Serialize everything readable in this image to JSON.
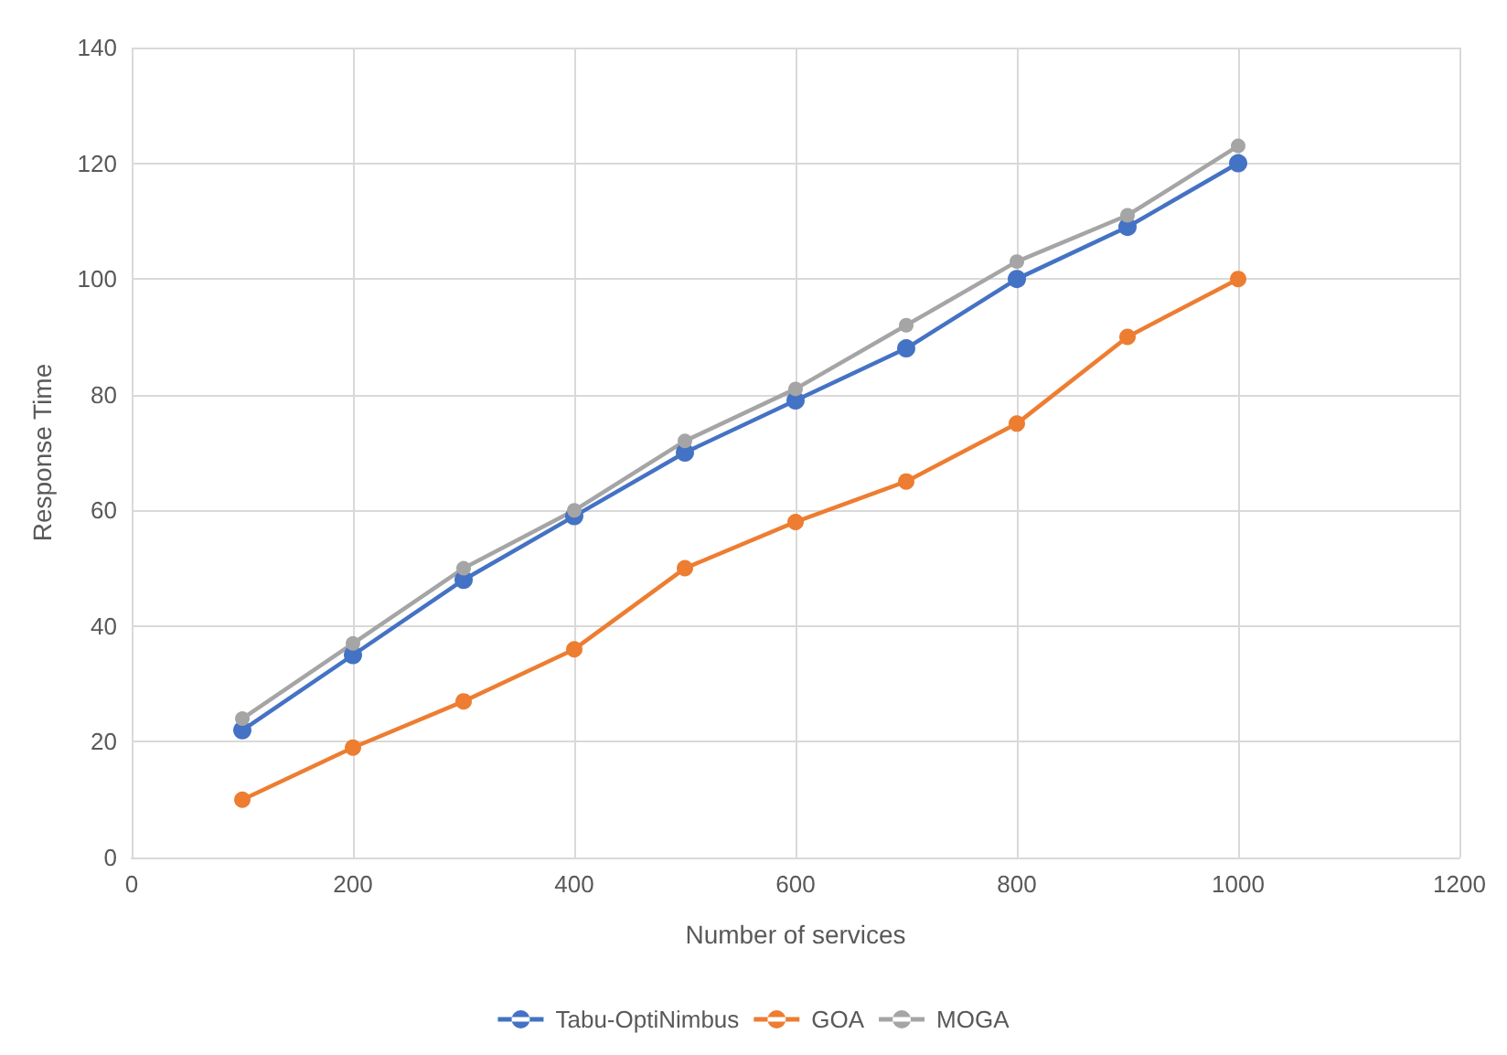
{
  "chart_data": {
    "type": "line",
    "xlabel": "Number of services",
    "ylabel": "Response Time",
    "x": [
      100,
      200,
      300,
      400,
      500,
      600,
      700,
      800,
      900,
      1000
    ],
    "series": [
      {
        "name": "Tabu-OptiNimbus",
        "color": "#4472c4",
        "values": [
          22,
          35,
          48,
          59,
          70,
          79,
          88,
          100,
          109,
          120
        ]
      },
      {
        "name": "GOA",
        "color": "#ed7d31",
        "values": [
          10,
          19,
          27,
          36,
          50,
          58,
          65,
          75,
          90,
          100
        ]
      },
      {
        "name": "MOGA",
        "color": "#a5a5a5",
        "values": [
          24,
          37,
          50,
          60,
          72,
          81,
          92,
          103,
          111,
          123
        ]
      }
    ],
    "xlim": [
      0,
      1200
    ],
    "xticks": [
      0,
      200,
      400,
      600,
      800,
      1000,
      1200
    ],
    "ylim": [
      0,
      140
    ],
    "yticks": [
      0,
      20,
      40,
      60,
      80,
      100,
      120,
      140
    ],
    "grid": true,
    "legend": "bottom",
    "marker": "circle",
    "line_style": "solid"
  }
}
